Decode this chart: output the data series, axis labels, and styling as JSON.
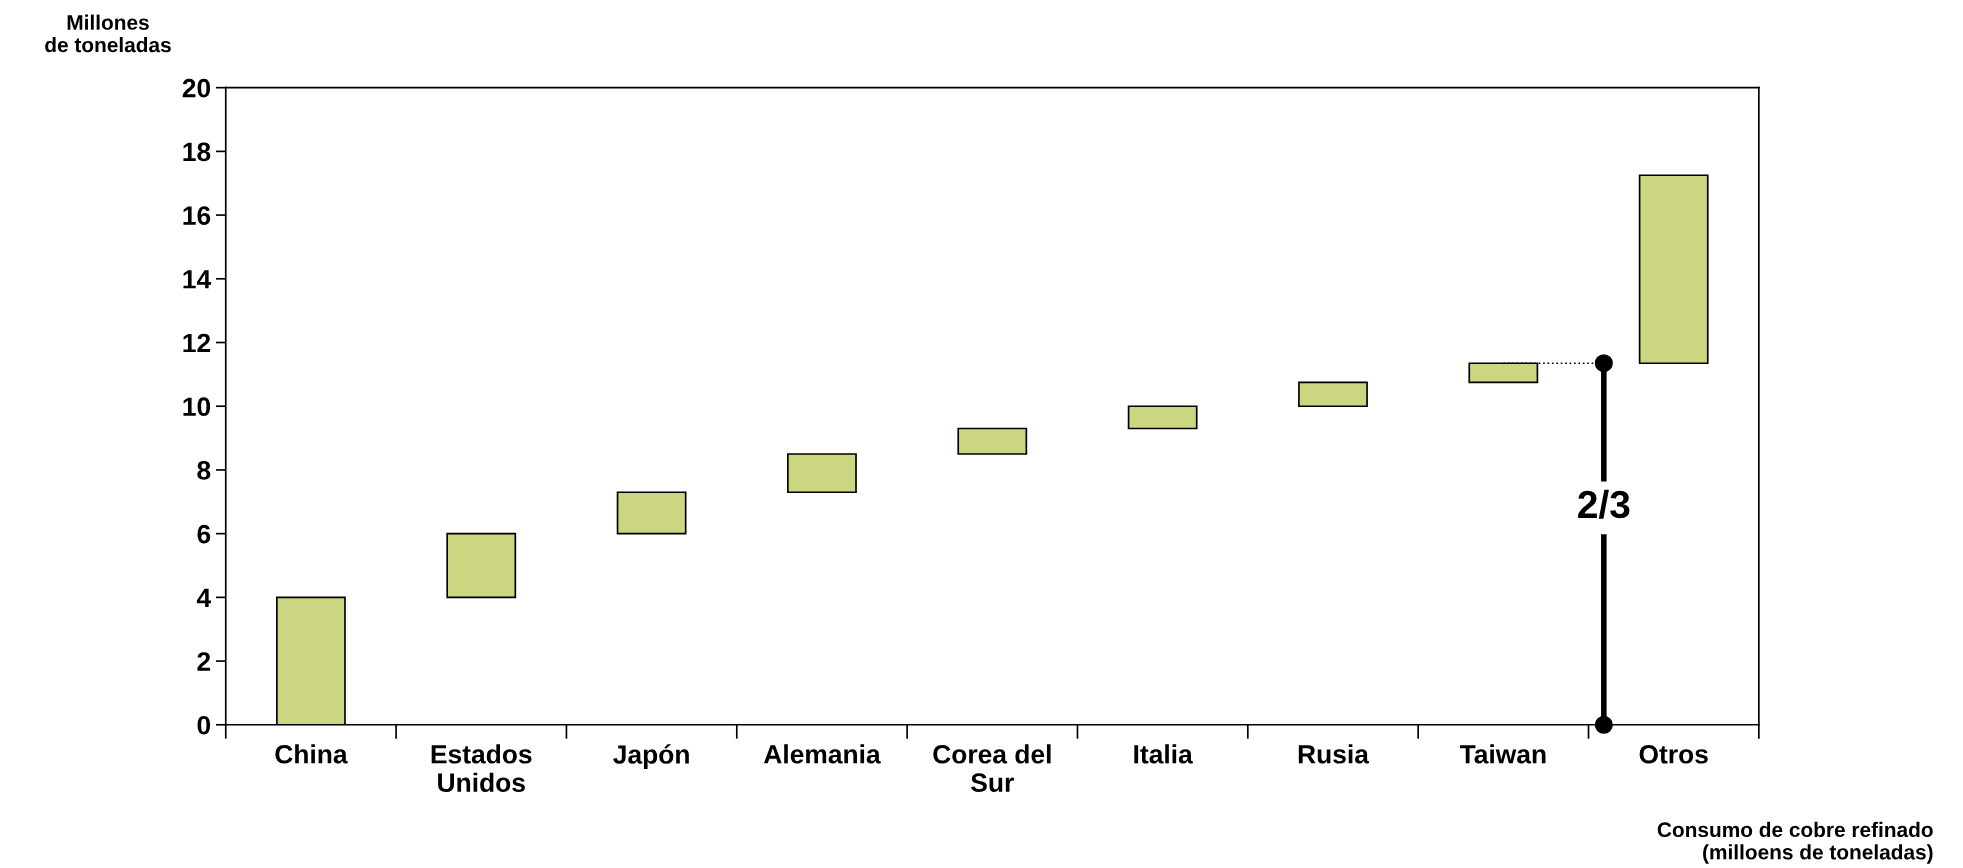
{
  "chart_data": {
    "type": "bar",
    "ylabel": "Millones\nde toneladas",
    "categories": [
      "China",
      "Estados\nUnidos",
      "Japón",
      "Alemania",
      "Corea del\nSur",
      "Italia",
      "Rusia",
      "Taiwan",
      "Otros"
    ],
    "values": [
      4.0,
      2.0,
      1.3,
      1.2,
      0.8,
      0.7,
      0.75,
      0.6,
      5.9
    ],
    "base": [
      0,
      4.0,
      6.0,
      7.3,
      8.5,
      9.3,
      10.0,
      10.75,
      11.35
    ],
    "color": "#ccd57f",
    "ylim": [
      0,
      20
    ],
    "yticks": [
      0,
      2,
      4,
      6,
      8,
      10,
      12,
      14,
      16,
      18,
      20
    ],
    "grid": false,
    "legend": false,
    "annotations": [
      "2/3",
      "Consumo de cobre refinado\n(milloens de toneladas)"
    ]
  }
}
